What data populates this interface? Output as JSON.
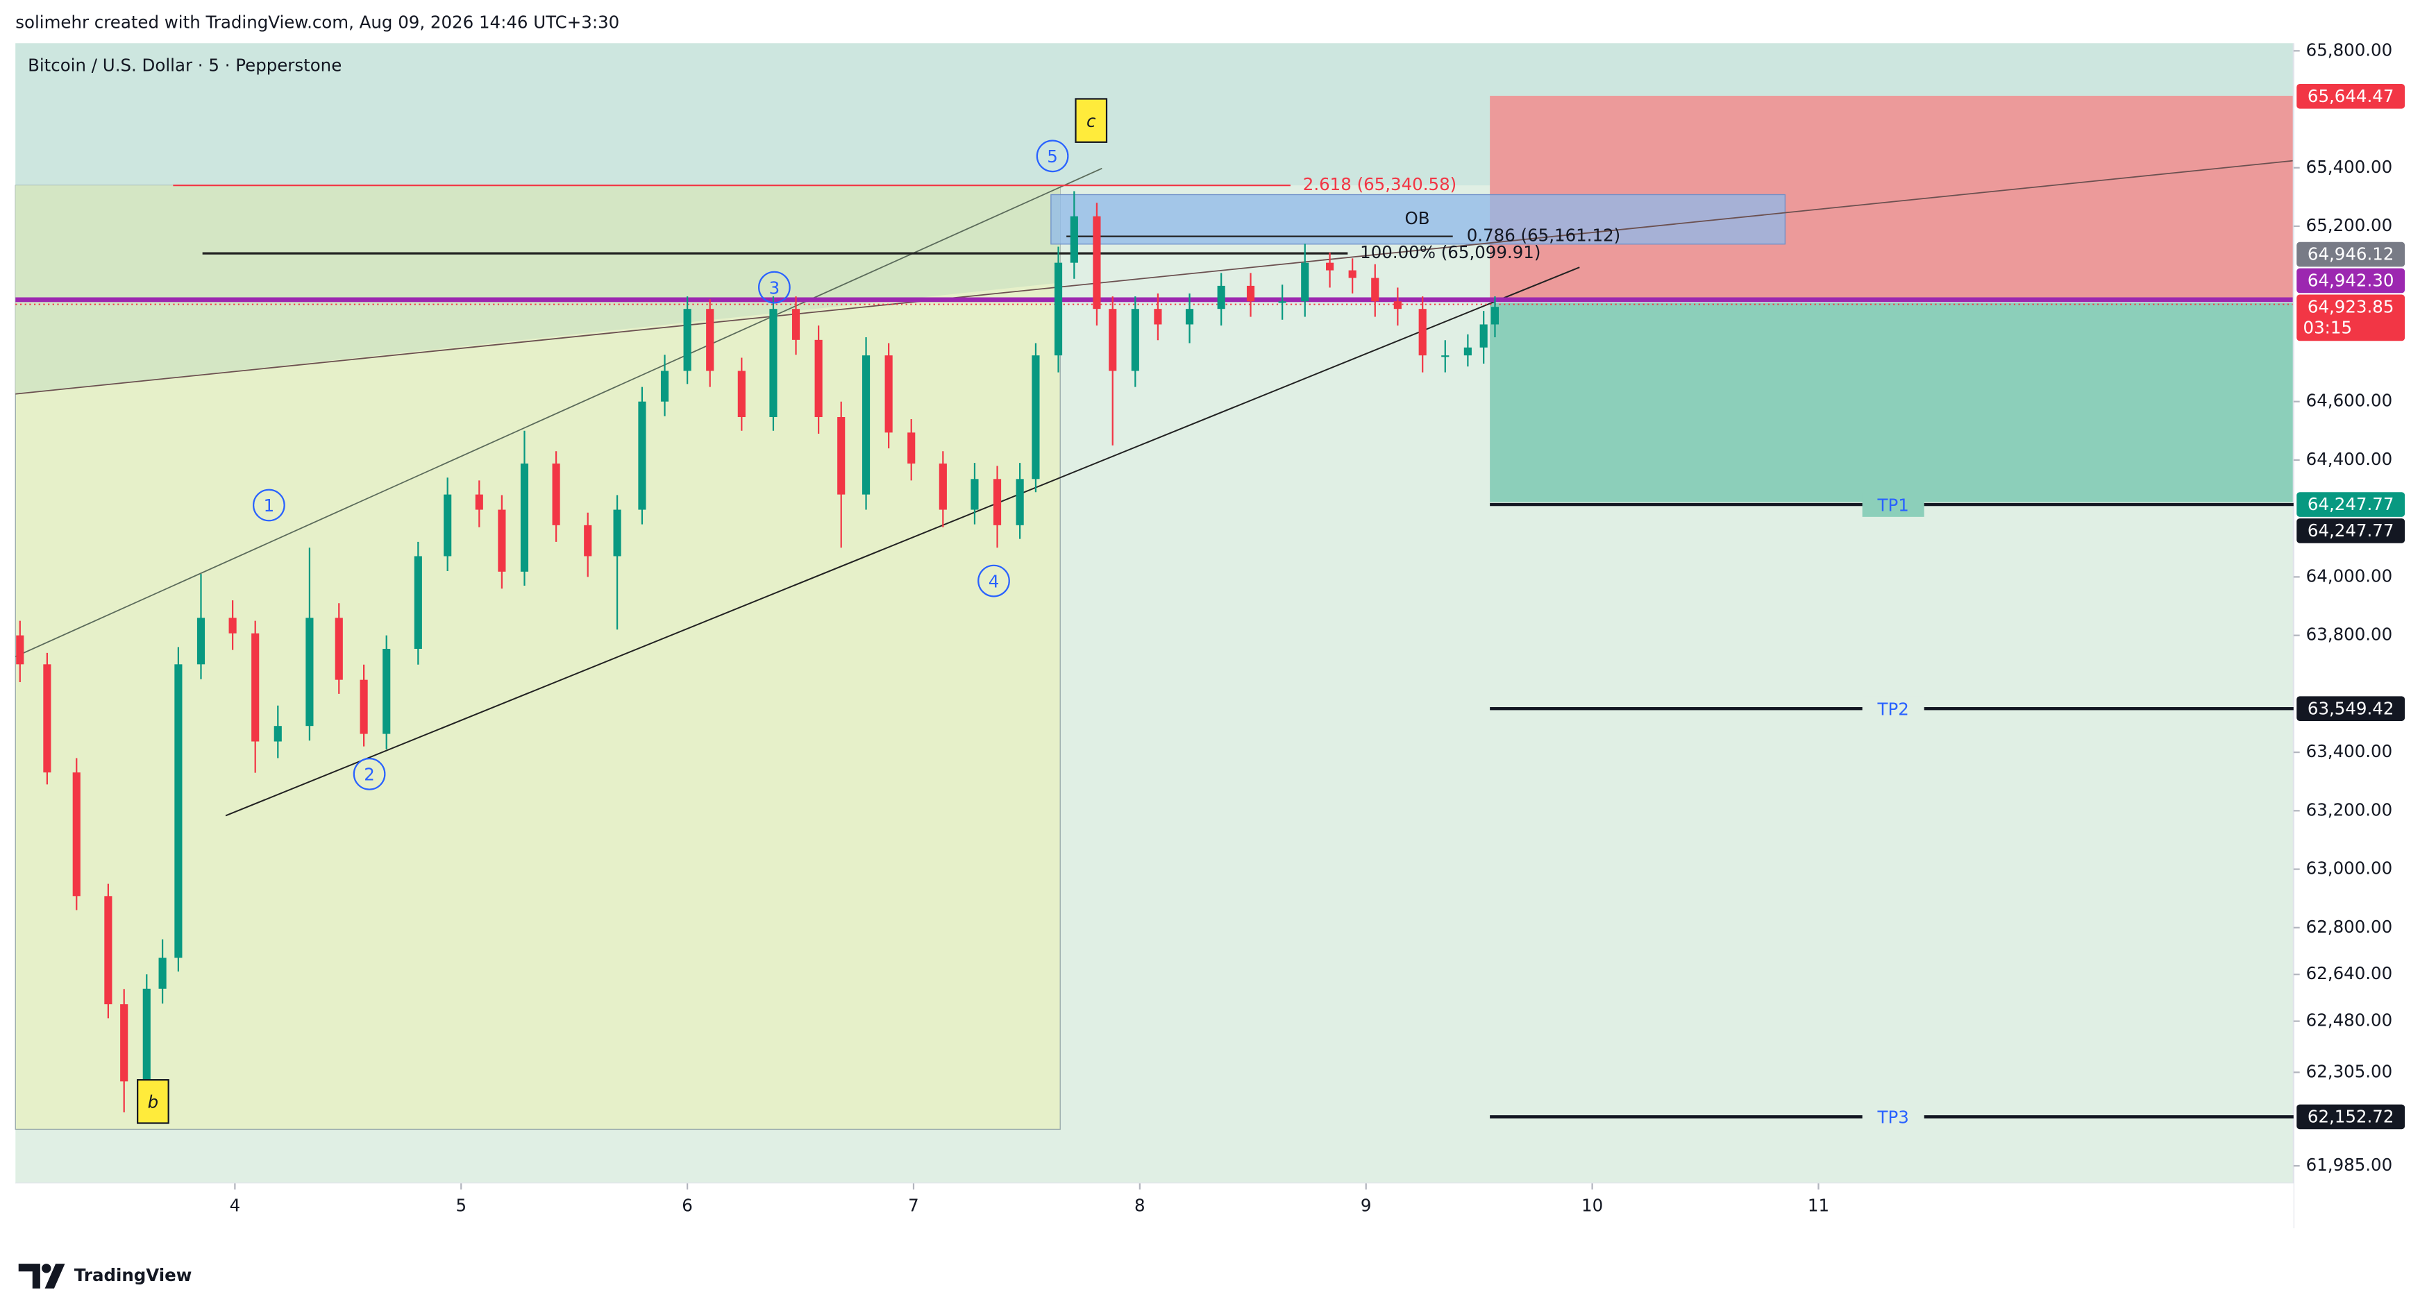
{
  "header": {
    "attribution": "solimehr created with TradingView.com, Aug 09, 2026 14:46 UTC+3:30",
    "symbol": "Bitcoin / U.S. Dollar · 5 · Pepperstone"
  },
  "chart_data": {
    "type": "candlestick",
    "up_color": "#089981",
    "down_color": "#f23645",
    "x": [
      3.05,
      3.17,
      3.3,
      3.44,
      3.51,
      3.61,
      3.68,
      3.75,
      3.85,
      3.99,
      4.09,
      4.19,
      4.33,
      4.46,
      4.57,
      4.67,
      4.81,
      4.94,
      5.08,
      5.18,
      5.28,
      5.42,
      5.56,
      5.69,
      5.8,
      5.9,
      6.0,
      6.1,
      6.24,
      6.38,
      6.48,
      6.58,
      6.68,
      6.79,
      6.89,
      6.99,
      7.13,
      7.27,
      7.37,
      7.47,
      7.54,
      7.64,
      7.71,
      7.81,
      7.88,
      7.98,
      8.08,
      8.22,
      8.36,
      8.49,
      8.63,
      8.73,
      8.84,
      8.94,
      9.04,
      9.14,
      9.25,
      9.35,
      9.45,
      9.52,
      9.57
    ],
    "open": [
      63800,
      63701,
      63331,
      62908,
      62538,
      62274,
      62591,
      62697,
      63701,
      63860,
      63807,
      63437,
      63490,
      63860,
      63648,
      63463,
      63754,
      64071,
      64282,
      64230,
      64018,
      64388,
      64177,
      64071,
      64230,
      64600,
      64705,
      64917,
      64705,
      64547,
      64917,
      64811,
      64547,
      64282,
      64758,
      64494,
      64388,
      64230,
      64335,
      64177,
      64335,
      64758,
      65075,
      65234,
      64917,
      64705,
      64917,
      64864,
      64917,
      64996,
      64943,
      64943,
      65075,
      65049,
      65023,
      64943,
      64917,
      64758,
      64758,
      64785,
      64864
    ],
    "high": [
      63850,
      63740,
      63380,
      62950,
      62590,
      62640,
      62760,
      63760,
      64010,
      63920,
      63850,
      63560,
      64100,
      63910,
      63700,
      63800,
      64120,
      64340,
      64330,
      64280,
      64500,
      64430,
      64220,
      64280,
      64650,
      64760,
      64960,
      64950,
      64750,
      64960,
      64960,
      64860,
      64600,
      64820,
      64800,
      64540,
      64430,
      64390,
      64380,
      64390,
      64800,
      65130,
      65320,
      65280,
      64960,
      64960,
      64970,
      64970,
      65040,
      65040,
      65000,
      65140,
      65110,
      65090,
      65070,
      64990,
      64960,
      64810,
      64830,
      64910,
      64960
    ],
    "low": [
      63640,
      63290,
      62860,
      62490,
      62168,
      62230,
      62540,
      62650,
      63650,
      63750,
      63330,
      63380,
      63440,
      63600,
      63420,
      63410,
      63700,
      64020,
      64170,
      63960,
      63970,
      64120,
      64000,
      63820,
      64180,
      64550,
      64660,
      64650,
      64500,
      64500,
      64760,
      64490,
      64100,
      64230,
      64440,
      64330,
      64170,
      64180,
      64100,
      64130,
      64290,
      64700,
      65020,
      64860,
      64450,
      64650,
      64810,
      64800,
      64860,
      64890,
      64880,
      64890,
      64990,
      64970,
      64890,
      64860,
      64700,
      64700,
      64720,
      64730,
      64820
    ],
    "close": [
      63701,
      63331,
      62908,
      62538,
      62274,
      62591,
      62697,
      63701,
      63860,
      63807,
      63437,
      63490,
      63860,
      63648,
      63463,
      63754,
      64071,
      64282,
      64230,
      64018,
      64388,
      64177,
      64071,
      64230,
      64600,
      64705,
      64917,
      64705,
      64547,
      64917,
      64811,
      64547,
      64282,
      64758,
      64494,
      64388,
      64230,
      64335,
      64177,
      64335,
      64758,
      65075,
      65234,
      64917,
      64705,
      64917,
      64864,
      64917,
      64996,
      64943,
      64943,
      65075,
      65049,
      65023,
      64943,
      64917,
      64758,
      64758,
      64785,
      64864,
      64924
    ],
    "xlim": [
      3.03,
      13.1
    ],
    "xticks": [
      4,
      5,
      6,
      7,
      8,
      9,
      10,
      11
    ],
    "ylim": [
      61925,
      65826
    ],
    "yticks": [
      {
        "value": 65800,
        "label": "65,800.00"
      },
      {
        "value": 65400,
        "label": "65,400.00"
      },
      {
        "value": 65200,
        "label": "65,200.00"
      },
      {
        "value": 64600,
        "label": "64,600.00"
      },
      {
        "value": 64400,
        "label": "64,400.00"
      },
      {
        "value": 64000,
        "label": "64,000.00"
      },
      {
        "value": 63800,
        "label": "63,800.00"
      },
      {
        "value": 63400,
        "label": "63,400.00"
      },
      {
        "value": 63200,
        "label": "63,200.00"
      },
      {
        "value": 63000,
        "label": "63,000.00"
      },
      {
        "value": 62800,
        "label": "62,800.00"
      },
      {
        "value": 62640,
        "label": "62,640.00"
      },
      {
        "value": 62480,
        "label": "62,480.00"
      },
      {
        "value": 62305,
        "label": "62,305.00"
      },
      {
        "value": 61985,
        "label": "61,985.00"
      }
    ],
    "wave_labels": [
      "1",
      "2",
      "3",
      "4",
      "5",
      "b",
      "c"
    ],
    "fib_labels": [
      "2.618 (65,340.58)",
      "0.786 (65,161.12)",
      "100.00% (65,099.91)"
    ],
    "zone_label": "OB",
    "levels": [
      {
        "name": "TP1",
        "value": 64247.77,
        "label": "64,247.77"
      },
      {
        "name": "TP2",
        "value": 63549.42,
        "label": "63,549.42"
      },
      {
        "name": "TP3",
        "value": 62152.72,
        "label": "62,152.72"
      }
    ],
    "price_labels": [
      {
        "value": 65644.47,
        "label": "65,644.47",
        "color": "#f23645"
      },
      {
        "value": 64946.12,
        "label": "64,946.12",
        "color": "#787b86"
      },
      {
        "value": 64942.3,
        "label": "64,942.30",
        "color": "#9c27b0"
      },
      {
        "value": 64923.85,
        "label": "64,923.85",
        "color": "#f23645",
        "countdown": "03:15"
      },
      {
        "value": 64247.77,
        "label": "64,247.77",
        "color": "#089981"
      }
    ]
  },
  "footer": {
    "logo": "TradingView"
  }
}
